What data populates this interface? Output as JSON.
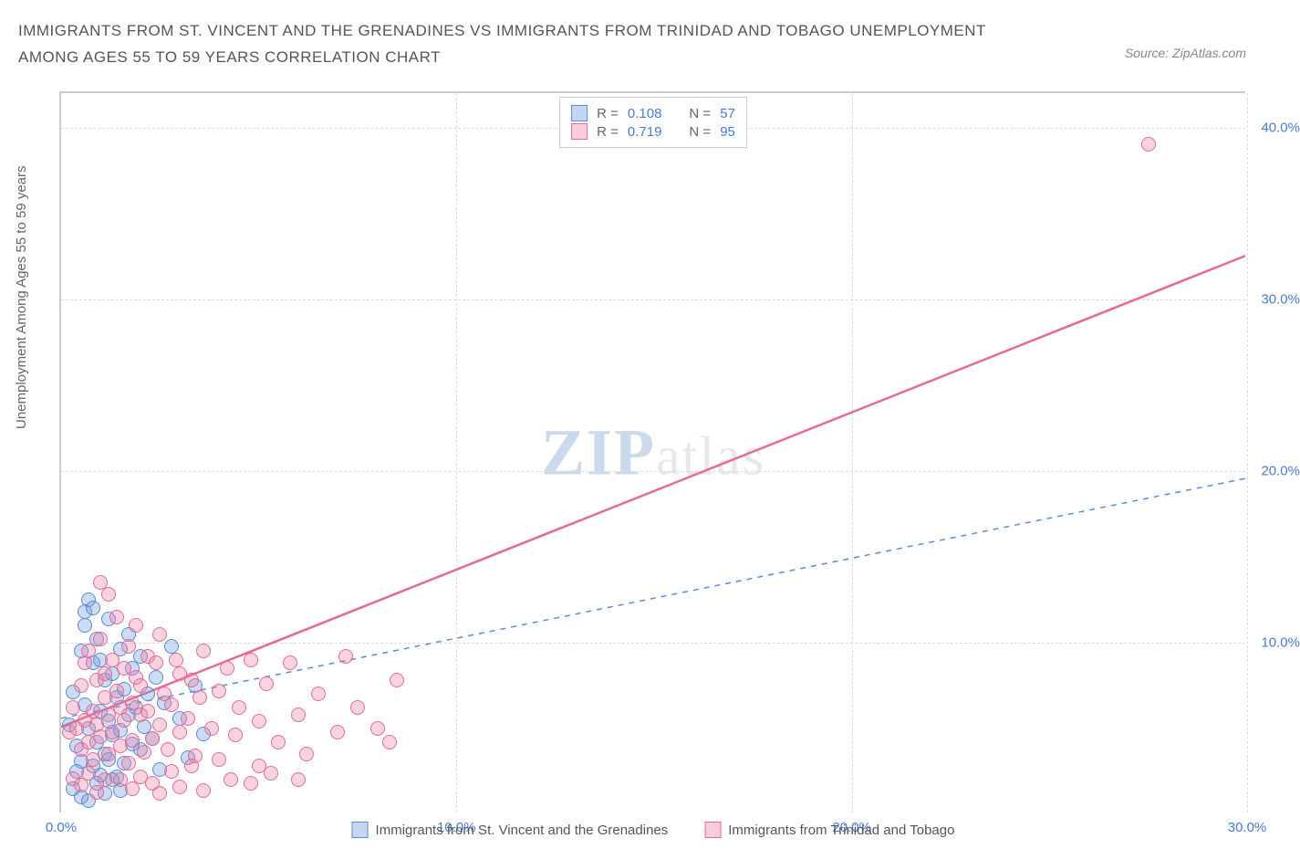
{
  "title": "IMMIGRANTS FROM ST. VINCENT AND THE GRENADINES VS IMMIGRANTS FROM TRINIDAD AND TOBAGO UNEMPLOYMENT AMONG AGES 55 TO 59 YEARS CORRELATION CHART",
  "source_label": "Source: ZipAtlas.com",
  "ylabel": "Unemployment Among Ages 55 to 59 years",
  "watermark_main": "ZIP",
  "watermark_sub": "atlas",
  "chart": {
    "type": "scatter",
    "xlim": [
      0,
      30
    ],
    "ylim": [
      0,
      42
    ],
    "xticks": [
      0.0,
      10.0,
      20.0,
      30.0
    ],
    "xtick_labels": [
      "0.0%",
      "10.0%",
      "20.0%",
      "30.0%"
    ],
    "yticks": [
      10.0,
      20.0,
      30.0,
      40.0
    ],
    "ytick_labels": [
      "10.0%",
      "20.0%",
      "30.0%",
      "40.0%"
    ],
    "grid_color": "#dddddd",
    "background_color": "#ffffff",
    "marker_radius": 8,
    "series": [
      {
        "name": "Immigrants from St. Vincent and the Grenadines",
        "color_fill": "rgba(108,155,222,0.35)",
        "color_stroke": "#5a8cd6",
        "R": "0.108",
        "N": "57",
        "trend": {
          "x1": 0.0,
          "y1": 5.5,
          "x2": 30.0,
          "y2": 19.5,
          "dash": "6,6",
          "stroke": "#5a8cd6",
          "width": 1.5
        },
        "points": [
          [
            0.2,
            5.2
          ],
          [
            0.3,
            7.1
          ],
          [
            0.4,
            4.0
          ],
          [
            0.5,
            9.5
          ],
          [
            0.5,
            3.1
          ],
          [
            0.6,
            11.0
          ],
          [
            0.6,
            6.4
          ],
          [
            0.7,
            12.5
          ],
          [
            0.7,
            5.0
          ],
          [
            0.8,
            8.8
          ],
          [
            0.8,
            2.8
          ],
          [
            0.9,
            10.2
          ],
          [
            0.9,
            4.2
          ],
          [
            1.0,
            6.0
          ],
          [
            1.0,
            9.0
          ],
          [
            1.1,
            3.5
          ],
          [
            1.1,
            7.8
          ],
          [
            1.2,
            5.4
          ],
          [
            1.2,
            11.4
          ],
          [
            1.3,
            4.6
          ],
          [
            1.3,
            8.2
          ],
          [
            1.4,
            2.2
          ],
          [
            1.4,
            6.8
          ],
          [
            1.5,
            9.6
          ],
          [
            1.5,
            4.9
          ],
          [
            1.6,
            7.3
          ],
          [
            1.6,
            3.0
          ],
          [
            1.7,
            5.8
          ],
          [
            1.7,
            10.5
          ],
          [
            1.8,
            4.1
          ],
          [
            1.8,
            8.5
          ],
          [
            1.9,
            6.2
          ],
          [
            2.0,
            3.8
          ],
          [
            2.0,
            9.2
          ],
          [
            2.1,
            5.1
          ],
          [
            2.2,
            7.0
          ],
          [
            2.3,
            4.4
          ],
          [
            2.4,
            8.0
          ],
          [
            2.5,
            2.6
          ],
          [
            2.6,
            6.5
          ],
          [
            2.8,
            9.8
          ],
          [
            3.0,
            5.6
          ],
          [
            3.2,
            3.3
          ],
          [
            3.4,
            7.5
          ],
          [
            3.6,
            4.7
          ],
          [
            0.3,
            1.5
          ],
          [
            0.5,
            1.0
          ],
          [
            0.7,
            0.8
          ],
          [
            0.9,
            1.8
          ],
          [
            1.1,
            1.2
          ],
          [
            1.3,
            2.0
          ],
          [
            1.5,
            1.4
          ],
          [
            0.4,
            2.5
          ],
          [
            0.6,
            11.8
          ],
          [
            0.8,
            12.0
          ],
          [
            1.0,
            2.3
          ],
          [
            1.2,
            3.2
          ]
        ]
      },
      {
        "name": "Immigrants from Trinidad and Tobago",
        "color_fill": "rgba(237,128,162,0.35)",
        "color_stroke": "#e56a94",
        "R": "0.719",
        "N": "95",
        "trend": {
          "x1": 0.0,
          "y1": 5.0,
          "x2": 30.0,
          "y2": 32.5,
          "dash": "none",
          "stroke": "#e56a94",
          "width": 2.5
        },
        "points": [
          [
            0.2,
            4.8
          ],
          [
            0.3,
            6.2
          ],
          [
            0.4,
            5.0
          ],
          [
            0.5,
            7.5
          ],
          [
            0.5,
            3.8
          ],
          [
            0.6,
            8.8
          ],
          [
            0.6,
            5.5
          ],
          [
            0.7,
            4.2
          ],
          [
            0.7,
            9.5
          ],
          [
            0.8,
            6.0
          ],
          [
            0.8,
            3.2
          ],
          [
            0.9,
            7.8
          ],
          [
            0.9,
            5.2
          ],
          [
            1.0,
            10.2
          ],
          [
            1.0,
            4.5
          ],
          [
            1.1,
            6.8
          ],
          [
            1.1,
            8.2
          ],
          [
            1.2,
            5.8
          ],
          [
            1.2,
            3.5
          ],
          [
            1.3,
            9.0
          ],
          [
            1.3,
            4.8
          ],
          [
            1.4,
            7.2
          ],
          [
            1.4,
            11.5
          ],
          [
            1.5,
            6.2
          ],
          [
            1.5,
            4.0
          ],
          [
            1.6,
            8.5
          ],
          [
            1.6,
            5.5
          ],
          [
            1.7,
            3.0
          ],
          [
            1.7,
            9.8
          ],
          [
            1.8,
            6.5
          ],
          [
            1.8,
            4.3
          ],
          [
            1.9,
            8.0
          ],
          [
            1.9,
            11.0
          ],
          [
            2.0,
            5.8
          ],
          [
            2.0,
            7.5
          ],
          [
            2.1,
            3.6
          ],
          [
            2.2,
            9.2
          ],
          [
            2.2,
            6.0
          ],
          [
            2.3,
            4.4
          ],
          [
            2.4,
            8.8
          ],
          [
            2.5,
            5.2
          ],
          [
            2.5,
            10.5
          ],
          [
            2.6,
            7.0
          ],
          [
            2.7,
            3.8
          ],
          [
            2.8,
            6.4
          ],
          [
            2.9,
            9.0
          ],
          [
            3.0,
            4.8
          ],
          [
            3.0,
            8.2
          ],
          [
            3.2,
            5.6
          ],
          [
            3.3,
            7.8
          ],
          [
            3.4,
            3.4
          ],
          [
            3.5,
            6.8
          ],
          [
            3.6,
            9.5
          ],
          [
            3.8,
            5.0
          ],
          [
            4.0,
            7.2
          ],
          [
            4.0,
            3.2
          ],
          [
            4.2,
            8.5
          ],
          [
            4.4,
            4.6
          ],
          [
            4.5,
            6.2
          ],
          [
            4.8,
            9.0
          ],
          [
            5.0,
            5.4
          ],
          [
            5.0,
            2.8
          ],
          [
            5.2,
            7.6
          ],
          [
            5.5,
            4.2
          ],
          [
            5.8,
            8.8
          ],
          [
            6.0,
            5.8
          ],
          [
            6.2,
            3.5
          ],
          [
            6.5,
            7.0
          ],
          [
            7.0,
            4.8
          ],
          [
            7.2,
            9.2
          ],
          [
            7.5,
            6.2
          ],
          [
            8.0,
            5.0
          ],
          [
            8.3,
            4.2
          ],
          [
            8.5,
            7.8
          ],
          [
            1.0,
            13.5
          ],
          [
            1.2,
            12.8
          ],
          [
            1.5,
            2.0
          ],
          [
            1.8,
            1.5
          ],
          [
            2.0,
            2.2
          ],
          [
            2.3,
            1.8
          ],
          [
            2.5,
            1.2
          ],
          [
            2.8,
            2.5
          ],
          [
            3.0,
            1.6
          ],
          [
            3.3,
            2.8
          ],
          [
            3.6,
            1.4
          ],
          [
            0.3,
            2.1
          ],
          [
            0.5,
            1.7
          ],
          [
            0.7,
            2.4
          ],
          [
            0.9,
            1.3
          ],
          [
            1.1,
            2.0
          ],
          [
            4.3,
            2.0
          ],
          [
            4.8,
            1.8
          ],
          [
            5.3,
            2.4
          ],
          [
            6.0,
            2.0
          ],
          [
            27.5,
            39.0
          ]
        ]
      }
    ]
  },
  "stats_box": {
    "rows": [
      {
        "swatch": "blue",
        "r_label": "R =",
        "r_val": "0.108",
        "n_label": "N =",
        "n_val": "57"
      },
      {
        "swatch": "pink",
        "r_label": "R =",
        "r_val": "0.719",
        "n_label": "N =",
        "n_val": "95"
      }
    ]
  },
  "bottom_legend": [
    {
      "swatch": "blue",
      "label": "Immigrants from St. Vincent and the Grenadines"
    },
    {
      "swatch": "pink",
      "label": "Immigrants from Trinidad and Tobago"
    }
  ]
}
